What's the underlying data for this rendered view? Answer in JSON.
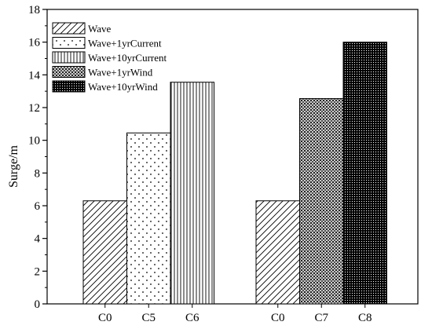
{
  "chart_data": {
    "type": "bar",
    "title": "",
    "xlabel": "",
    "ylabel": "Surge/m",
    "ylim": [
      0,
      18
    ],
    "yticks": [
      0,
      2,
      4,
      6,
      8,
      10,
      12,
      14,
      16,
      18
    ],
    "grid": false,
    "legend_position": "top-left",
    "groups": [
      {
        "bars": [
          {
            "category": "C0",
            "value": 6.3,
            "series": "Wave"
          },
          {
            "category": "C5",
            "value": 10.45,
            "series": "Wave+1yrCurrent"
          },
          {
            "category": "C6",
            "value": 13.55,
            "series": "Wave+10yrCurrent"
          }
        ]
      },
      {
        "bars": [
          {
            "category": "C0",
            "value": 6.3,
            "series": "Wave"
          },
          {
            "category": "C7",
            "value": 12.55,
            "series": "Wave+1yrWind"
          },
          {
            "category": "C8",
            "value": 16.0,
            "series": "Wave+10yrWind"
          }
        ]
      }
    ],
    "series": [
      {
        "name": "Wave",
        "pattern": "diagonal-hatch"
      },
      {
        "name": "Wave+1yrCurrent",
        "pattern": "sparse-dots"
      },
      {
        "name": "Wave+10yrCurrent",
        "pattern": "vertical-lines"
      },
      {
        "name": "Wave+1yrWind",
        "pattern": "crosshatch-dots"
      },
      {
        "name": "Wave+10yrWind",
        "pattern": "dense-dots"
      }
    ],
    "colors": {
      "stroke": "#000000",
      "background": "#ffffff"
    }
  }
}
